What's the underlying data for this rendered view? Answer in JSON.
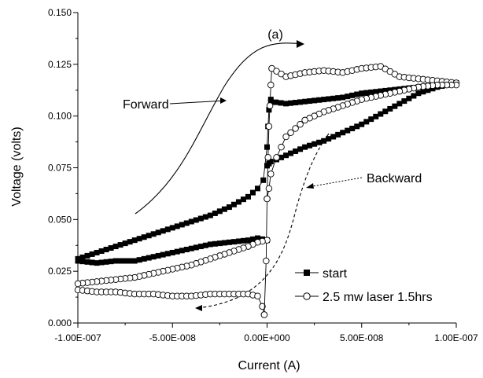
{
  "chart_data": {
    "type": "scatter",
    "panel_label": "(a)",
    "xlabel": "Current (A)",
    "ylabel": "Voltage (volts)",
    "xlim": [
      -1e-07,
      1e-07
    ],
    "ylim": [
      0.0,
      0.15
    ],
    "x_ticks": [
      -1e-07,
      -5e-08,
      0.0,
      5e-08,
      1e-07
    ],
    "x_tick_labels": [
      "-1.00E-007",
      "-5.00E-008",
      "0.00E+000",
      "5.00E-008",
      "1.00E-007"
    ],
    "y_ticks": [
      0.0,
      0.025,
      0.05,
      0.075,
      0.1,
      0.125,
      0.15
    ],
    "y_tick_labels": [
      "0.000",
      "0.025",
      "0.050",
      "0.075",
      "0.100",
      "0.125",
      "0.150"
    ],
    "grid": false,
    "legend_position": "bottom-right",
    "annotations": {
      "forward": "Forward",
      "backward": "Backward"
    },
    "series": [
      {
        "name": "start",
        "marker": "filled-square",
        "color": "#000000",
        "forward": {
          "x": [
            -1e-07,
            -9e-08,
            -8e-08,
            -7e-08,
            -6e-08,
            -5e-08,
            -4e-08,
            -3e-08,
            -2e-08,
            -1e-08,
            -5e-09,
            -2e-09,
            0.0,
            5e-10,
            1e-09,
            2e-09
          ],
          "y": [
            0.031,
            0.034,
            0.037,
            0.04,
            0.043,
            0.046,
            0.049,
            0.052,
            0.056,
            0.061,
            0.065,
            0.069,
            0.085,
            0.095,
            0.103,
            0.108
          ]
        },
        "upper": {
          "x": [
            2e-09,
            1e-08,
            2e-08,
            3e-08,
            4e-08,
            5e-08,
            6e-08,
            7e-08,
            8e-08,
            9e-08,
            1e-07
          ],
          "y": [
            0.107,
            0.106,
            0.107,
            0.108,
            0.109,
            0.111,
            0.112,
            0.113,
            0.114,
            0.115,
            0.116
          ]
        },
        "backward": {
          "x": [
            1e-07,
            9e-08,
            8e-08,
            7e-08,
            6e-08,
            5e-08,
            4e-08,
            3e-08,
            2e-08,
            1e-08,
            5e-09,
            2e-09,
            1e-09,
            0.0
          ],
          "y": [
            0.116,
            0.114,
            0.111,
            0.106,
            0.101,
            0.096,
            0.092,
            0.088,
            0.085,
            0.081,
            0.079,
            0.078,
            0.077,
            0.076
          ]
        },
        "lower": {
          "x": [
            0.0,
            -5e-09,
            -1e-08,
            -2e-08,
            -3e-08,
            -4e-08,
            -5e-08,
            -6e-08,
            -7e-08,
            -8e-08,
            -9e-08,
            -1e-07
          ],
          "y": [
            0.04,
            0.041,
            0.04,
            0.039,
            0.038,
            0.036,
            0.034,
            0.032,
            0.03,
            0.03,
            0.029,
            0.03
          ]
        }
      },
      {
        "name": "2.5 mw laser 1.5hrs",
        "marker": "open-circle",
        "color": "#000000",
        "bottom": {
          "x": [
            -1e-07,
            -9e-08,
            -8e-08,
            -7e-08,
            -6e-08,
            -5e-08,
            -4e-08,
            -3e-08,
            -2e-08,
            -1e-08,
            -5e-09,
            -2.5e-09,
            -1.5e-09
          ],
          "y": [
            0.016,
            0.015,
            0.015,
            0.014,
            0.014,
            0.013,
            0.013,
            0.014,
            0.014,
            0.014,
            0.013,
            0.008,
            0.004
          ]
        },
        "rise": {
          "x": [
            -1.5e-09,
            -5e-10,
            0.0,
            5e-10,
            1e-09,
            1.5e-09,
            2e-09,
            2.5e-09
          ],
          "y": [
            0.004,
            0.03,
            0.06,
            0.08,
            0.095,
            0.105,
            0.115,
            0.123
          ]
        },
        "top": {
          "x": [
            2.5e-09,
            1e-08,
            2e-08,
            3e-08,
            4e-08,
            5e-08,
            6e-08,
            7e-08,
            8e-08,
            9e-08,
            1e-07
          ],
          "y": [
            0.123,
            0.119,
            0.121,
            0.122,
            0.121,
            0.123,
            0.124,
            0.119,
            0.118,
            0.117,
            0.116
          ]
        },
        "return": {
          "x": [
            1e-07,
            9e-08,
            8e-08,
            7e-08,
            6e-08,
            5e-08,
            4e-08,
            3e-08,
            2e-08,
            1e-08,
            5e-09,
            2e-09,
            1e-09,
            0.0
          ],
          "y": [
            0.115,
            0.115,
            0.114,
            0.112,
            0.11,
            0.108,
            0.105,
            0.102,
            0.098,
            0.09,
            0.08,
            0.072,
            0.065,
            0.06
          ]
        },
        "lower": {
          "x": [
            0.0,
            -5e-09,
            -1e-08,
            -2e-08,
            -3e-08,
            -4e-08,
            -5e-08,
            -6e-08,
            -7e-08,
            -8e-08,
            -9e-08,
            -1e-07
          ],
          "y": [
            0.04,
            0.039,
            0.037,
            0.034,
            0.031,
            0.028,
            0.026,
            0.024,
            0.022,
            0.021,
            0.02,
            0.019
          ]
        }
      }
    ]
  }
}
